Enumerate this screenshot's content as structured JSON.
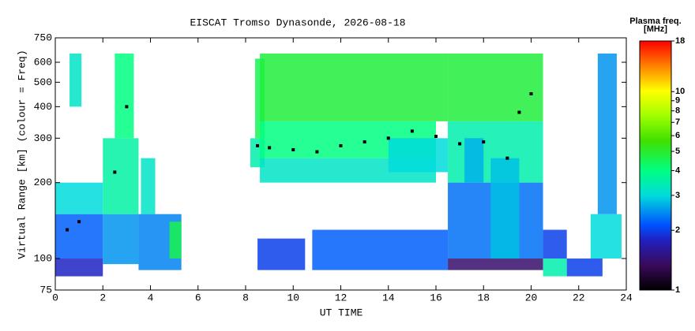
{
  "chart_data": {
    "type": "range-time-intensity",
    "title": "EISCAT Tromso Dynasonde, 2026-08-18",
    "x_label": "UT TIME",
    "y_label": "Virtual Range [km] (colour = Freq)",
    "colorbar_title": "Plasma freq.",
    "colorbar_unit": "[MHz]",
    "xlim": [
      0,
      24
    ],
    "xticks": [
      0,
      2,
      4,
      6,
      8,
      10,
      12,
      14,
      16,
      18,
      20,
      22,
      24
    ],
    "ylim": [
      75,
      750
    ],
    "yticks": [
      75,
      100,
      200,
      300,
      400,
      500,
      600,
      750
    ],
    "yscale": "log",
    "clim": [
      1,
      18
    ],
    "cticks": [
      1,
      2,
      3,
      4,
      5,
      6,
      7,
      8,
      9,
      10,
      18
    ],
    "cscale": "log",
    "cells": [
      [
        0,
        2,
        85,
        100,
        1.8
      ],
      [
        0,
        2,
        100,
        150,
        2.2
      ],
      [
        0,
        2,
        150,
        200,
        3
      ],
      [
        0.6,
        1.1,
        400,
        650,
        3.2
      ],
      [
        2,
        3.5,
        95,
        150,
        2.5
      ],
      [
        2,
        3.5,
        150,
        300,
        3.6
      ],
      [
        2.5,
        3.3,
        300,
        650,
        4
      ],
      [
        3.5,
        5.3,
        90,
        150,
        2.4
      ],
      [
        4.8,
        5.3,
        100,
        140,
        4.6
      ],
      [
        3.6,
        4.2,
        150,
        250,
        3.2
      ],
      [
        8.2,
        8.8,
        230,
        300,
        3.5
      ],
      [
        8.4,
        8.8,
        300,
        620,
        4.5
      ],
      [
        8.6,
        16,
        200,
        250,
        3.2
      ],
      [
        8.6,
        16,
        250,
        350,
        4
      ],
      [
        8.6,
        16.5,
        350,
        650,
        4.8
      ],
      [
        8.5,
        10.5,
        90,
        120,
        2
      ],
      [
        10.8,
        16.5,
        90,
        130,
        2.2
      ],
      [
        14,
        16.5,
        220,
        300,
        3
      ],
      [
        16.5,
        20.5,
        350,
        650,
        4.8
      ],
      [
        16.5,
        20.5,
        200,
        350,
        3.5
      ],
      [
        16.5,
        20.5,
        100,
        200,
        2.3
      ],
      [
        16.5,
        20.5,
        90,
        100,
        1.4
      ],
      [
        18.3,
        19.5,
        100,
        250,
        2.8
      ],
      [
        17.2,
        18,
        200,
        300,
        2.7
      ],
      [
        20.5,
        21.5,
        85,
        100,
        3.5
      ],
      [
        20.5,
        21.5,
        100,
        130,
        2
      ],
      [
        21.5,
        23,
        85,
        100,
        2
      ],
      [
        22.5,
        23.8,
        100,
        150,
        3
      ],
      [
        22.8,
        23.6,
        150,
        650,
        2.5
      ]
    ],
    "trace": {
      "color": "#000000",
      "x": [
        0.5,
        1,
        2.5,
        3,
        8.5,
        9,
        10,
        11,
        12,
        13,
        14,
        15,
        16,
        17,
        18,
        19,
        19.5,
        20
      ],
      "values": [
        130,
        140,
        220,
        400,
        280,
        275,
        270,
        265,
        280,
        290,
        300,
        320,
        305,
        285,
        290,
        250,
        380,
        450
      ]
    }
  }
}
